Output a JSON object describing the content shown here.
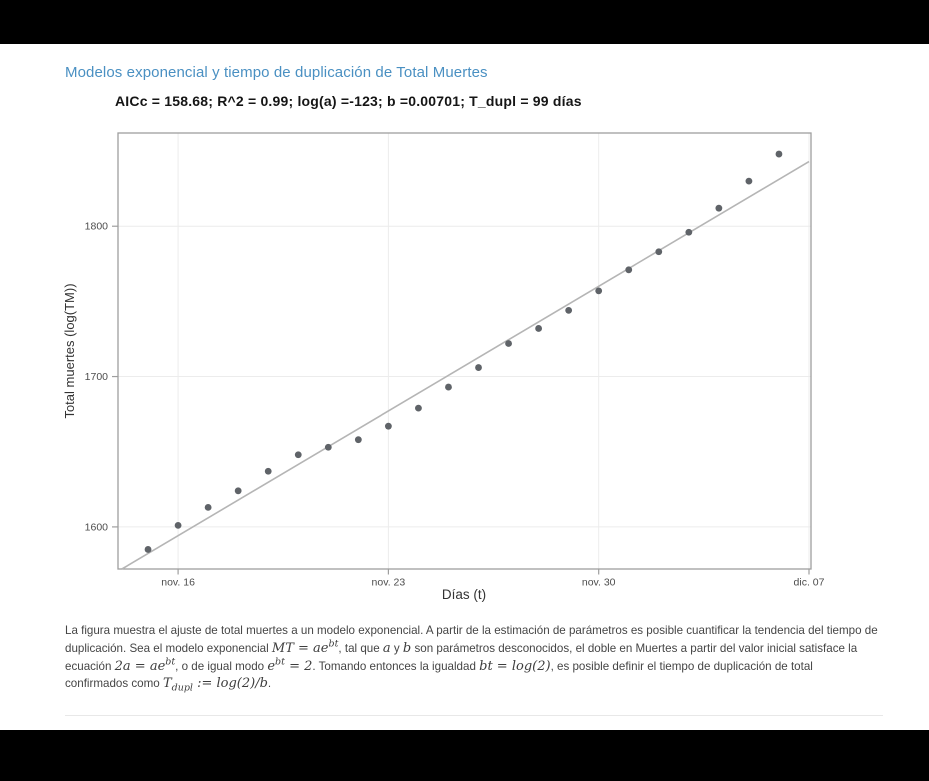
{
  "page": {
    "heading": "Modelos exponencial y tiempo de duplicación de Total Muertes",
    "heading_color": "#4a90c2"
  },
  "chart_data": {
    "type": "scatter",
    "title": "AICc = 158.68; R^2 = 0.99; log(a) =-123; b =0.00701; T_dupl = 99 días",
    "xlabel": "Días (t)",
    "ylabel": "Total muertes (log(TM))",
    "legend": "none",
    "grid": "on",
    "x_domain_days": [
      0,
      23
    ],
    "x_domain_note": "day 0 = nov. 14, day 23 = dic. 07",
    "y_domain": [
      1572,
      1862
    ],
    "y_ticks": [
      1600,
      1700,
      1800
    ],
    "x_tick_days": [
      2,
      9,
      16,
      23
    ],
    "x_tick_labels": [
      "nov. 16",
      "nov. 23",
      "nov. 30",
      "dic. 07"
    ],
    "points": [
      {
        "date": "nov. 15",
        "day": 1,
        "value": 1585
      },
      {
        "date": "nov. 16",
        "day": 2,
        "value": 1601
      },
      {
        "date": "nov. 17",
        "day": 3,
        "value": 1613
      },
      {
        "date": "nov. 18",
        "day": 4,
        "value": 1624
      },
      {
        "date": "nov. 19",
        "day": 5,
        "value": 1637
      },
      {
        "date": "nov. 20",
        "day": 6,
        "value": 1648
      },
      {
        "date": "nov. 21",
        "day": 7,
        "value": 1653
      },
      {
        "date": "nov. 22",
        "day": 8,
        "value": 1658
      },
      {
        "date": "nov. 23",
        "day": 9,
        "value": 1667
      },
      {
        "date": "nov. 24",
        "day": 10,
        "value": 1679
      },
      {
        "date": "nov. 25",
        "day": 11,
        "value": 1693
      },
      {
        "date": "nov. 26",
        "day": 12,
        "value": 1706
      },
      {
        "date": "nov. 27",
        "day": 13,
        "value": 1722
      },
      {
        "date": "nov. 28",
        "day": 14,
        "value": 1732
      },
      {
        "date": "nov. 29",
        "day": 15,
        "value": 1744
      },
      {
        "date": "nov. 30",
        "day": 16,
        "value": 1757
      },
      {
        "date": "dic. 01",
        "day": 17,
        "value": 1771
      },
      {
        "date": "dic. 02",
        "day": 18,
        "value": 1783
      },
      {
        "date": "dic. 03",
        "day": 19,
        "value": 1796
      },
      {
        "date": "dic. 04",
        "day": 20,
        "value": 1812
      },
      {
        "date": "dic. 05",
        "day": 21,
        "value": 1830
      },
      {
        "date": "dic. 06",
        "day": 22,
        "value": 1848
      }
    ],
    "fit_line": {
      "day_start": 0.13,
      "value_start": 1572,
      "day_end": 23,
      "value_end": 1843
    },
    "colors": {
      "point": "#5f6368",
      "fit_line": "#b5b5b5",
      "grid": "#ececec",
      "panel_border": "#9e9e9e",
      "tick_text": "#4d4d4d",
      "axis_label": "#333333",
      "title_text": "#151515"
    }
  },
  "caption": {
    "segments": [
      {
        "t": "x",
        "v": "La figura muestra el ajuste de total muertes a un modelo exponencial. A partir de la estimación de parámetros es posible cuantificar la tendencia del tiempo de duplicación. Sea el modelo exponencial "
      },
      {
        "t": "m",
        "v": "MT = ae^{bt}"
      },
      {
        "t": "x",
        "v": ", tal que "
      },
      {
        "t": "m",
        "v": "a"
      },
      {
        "t": "x",
        "v": " y "
      },
      {
        "t": "m",
        "v": "b"
      },
      {
        "t": "x",
        "v": " son parámetros desconocidos, el doble en Muertes a partir del valor inicial satisface la ecuación "
      },
      {
        "t": "m",
        "v": "2a = ae^{bt}"
      },
      {
        "t": "x",
        "v": ", o de igual modo "
      },
      {
        "t": "m",
        "v": "e^{bt} = 2"
      },
      {
        "t": "x",
        "v": ". Tomando entonces la igualdad "
      },
      {
        "t": "m",
        "v": "bt = log(2)"
      },
      {
        "t": "x",
        "v": ", es posible definir el tiempo de duplicación de total confirmados como "
      },
      {
        "t": "m",
        "v": "T_{dupl} := log(2)/b"
      },
      {
        "t": "x",
        "v": "."
      }
    ]
  }
}
